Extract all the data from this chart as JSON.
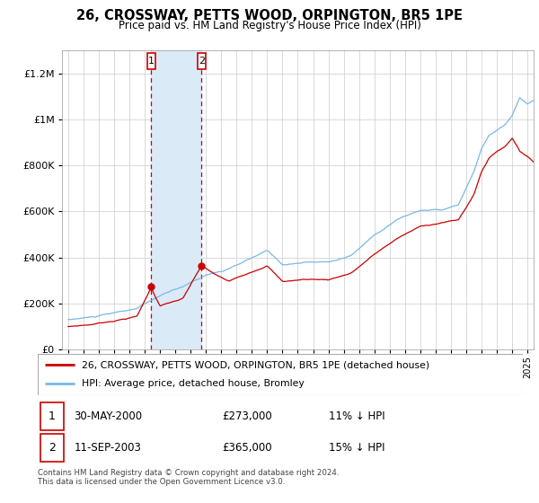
{
  "title": "26, CROSSWAY, PETTS WOOD, ORPINGTON, BR5 1PE",
  "subtitle": "Price paid vs. HM Land Registry's House Price Index (HPI)",
  "hpi_label": "HPI: Average price, detached house, Bromley",
  "price_label": "26, CROSSWAY, PETTS WOOD, ORPINGTON, BR5 1PE (detached house)",
  "footer": "Contains HM Land Registry data © Crown copyright and database right 2024.\nThis data is licensed under the Open Government Licence v3.0.",
  "transactions": [
    {
      "num": 1,
      "date": "30-MAY-2000",
      "price": "£273,000",
      "hpi": "11% ↓ HPI"
    },
    {
      "num": 2,
      "date": "11-SEP-2003",
      "price": "£365,000",
      "hpi": "15% ↓ HPI"
    }
  ],
  "hpi_color": "#7ab8e8",
  "price_color": "#cc0000",
  "annotation_fill": "#dbeaf7",
  "annotation_border": "#cc0000",
  "ann1_x": 2000.42,
  "ann2_x": 2003.71,
  "ann1_price": 273000,
  "ann2_price": 365000,
  "ylim": [
    0,
    1300000
  ],
  "xlim_left": 1994.6,
  "xlim_right": 2025.4,
  "bg_color": "#f0f4f8"
}
